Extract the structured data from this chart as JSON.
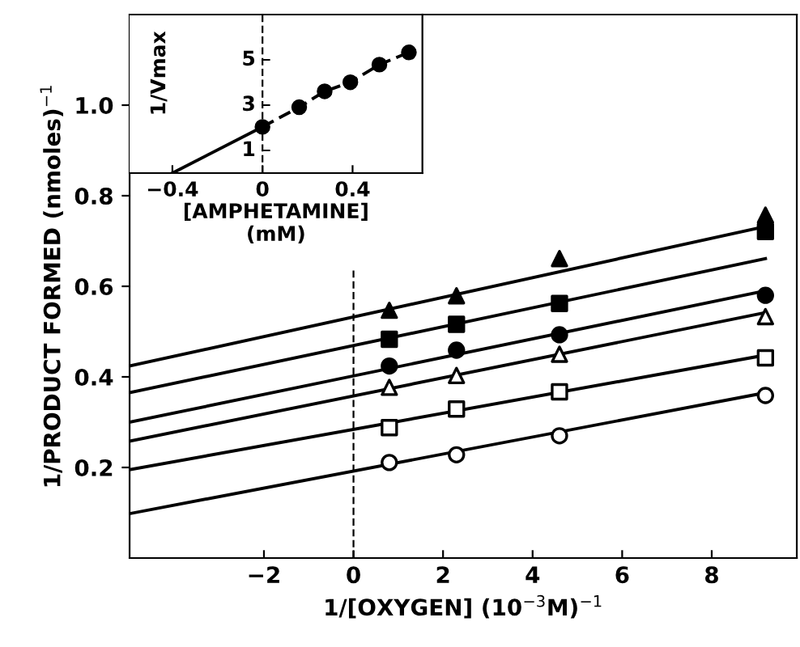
{
  "chart_data": [
    {
      "type": "scatter",
      "xlabel": "1/[OXYGEN] (10$^{−3}$M)$^{−1}$",
      "ylabel": "1/PRODUCT FORMED (nmoles)$^{−1}$",
      "xlim": [
        -5,
        9.9
      ],
      "ylim": [
        0,
        1.2
      ],
      "xticks": [
        {
          "value": -2,
          "label": "−2"
        },
        0,
        2,
        4,
        6,
        8
      ],
      "yticks": [
        0.2,
        0.4,
        0.6,
        0.8,
        {
          "value": 1,
          "label": "1.0"
        }
      ],
      "ref_lines": [
        {
          "axis": "x",
          "value": 0,
          "line_style": "dashed"
        }
      ],
      "series": [
        {
          "marker": "triangle",
          "color": "#000000",
          "x": [
            0.8,
            2.3,
            4.6,
            9.2
          ],
          "values": [
            0.547,
            0.579,
            0.661,
            0.757
          ]
        },
        {
          "marker": "square",
          "color": "#000000",
          "x": [
            0.8,
            2.3,
            4.6,
            9.2
          ],
          "values": [
            0.483,
            0.516,
            0.562,
            0.721
          ]
        },
        {
          "marker": "circle",
          "color": "#000000",
          "x": [
            0.8,
            2.3,
            4.6,
            9.2
          ],
          "values": [
            0.424,
            0.459,
            0.493,
            0.58
          ]
        },
        {
          "marker": "triangle",
          "color": "#ffffff",
          "x": [
            0.8,
            2.3,
            4.6,
            9.2
          ],
          "values": [
            0.377,
            0.403,
            0.45,
            0.533
          ]
        },
        {
          "marker": "square",
          "color": "#ffffff",
          "x": [
            0.8,
            2.3,
            4.6,
            9.2
          ],
          "values": [
            0.288,
            0.329,
            0.367,
            0.442
          ]
        },
        {
          "marker": "circle",
          "color": "#ffffff",
          "x": [
            0.8,
            2.3,
            4.6,
            9.2
          ],
          "values": [
            0.211,
            0.228,
            0.27,
            0.359
          ]
        },
        {
          "type": "line",
          "color": "#000000",
          "line_style": "solid",
          "x": [
            -5,
            9.2
          ],
          "values": [
            0.424,
            0.732
          ]
        },
        {
          "type": "line",
          "color": "#000000",
          "line_style": "solid",
          "x": [
            -5,
            9.2
          ],
          "values": [
            0.365,
            0.661
          ]
        },
        {
          "type": "line",
          "color": "#000000",
          "line_style": "solid",
          "x": [
            -5,
            9.2
          ],
          "values": [
            0.3,
            0.59
          ]
        },
        {
          "type": "line",
          "color": "#000000",
          "line_style": "solid",
          "x": [
            -5,
            9.2
          ],
          "values": [
            0.258,
            0.542
          ]
        },
        {
          "type": "line",
          "color": "#000000",
          "line_style": "solid",
          "x": [
            -5,
            9.2
          ],
          "values": [
            0.195,
            0.448
          ]
        },
        {
          "type": "line",
          "color": "#000000",
          "line_style": "solid",
          "x": [
            -5,
            9.2
          ],
          "values": [
            0.098,
            0.365
          ]
        }
      ]
    },
    {
      "type": "line",
      "xlabel": "[AMPHETAMINE]\n(mM)",
      "ylabel": "1/Vmax",
      "xlim": [
        -0.59,
        0.71
      ],
      "ylim": [
        0,
        7
      ],
      "xticks": [
        {
          "value": -0.4,
          "label": "−0.4"
        },
        0,
        0.4
      ],
      "yticks": [
        1,
        3,
        5
      ],
      "ref_lines": [
        {
          "axis": "x",
          "value": 0,
          "line_style": "dashed"
        }
      ],
      "series": [
        {
          "marker": "circle",
          "line_style": "dashed",
          "color": "#000000",
          "x": [
            0,
            0.163,
            0.276,
            0.39,
            0.519,
            0.65
          ],
          "values": [
            2.04,
            2.91,
            3.61,
            4.01,
            4.79,
            5.33
          ]
        },
        {
          "marker": "none",
          "line_style": "solid",
          "color": "#000000",
          "x": [
            -0.4,
            0
          ],
          "values": [
            0,
            2.04
          ]
        }
      ]
    }
  ]
}
